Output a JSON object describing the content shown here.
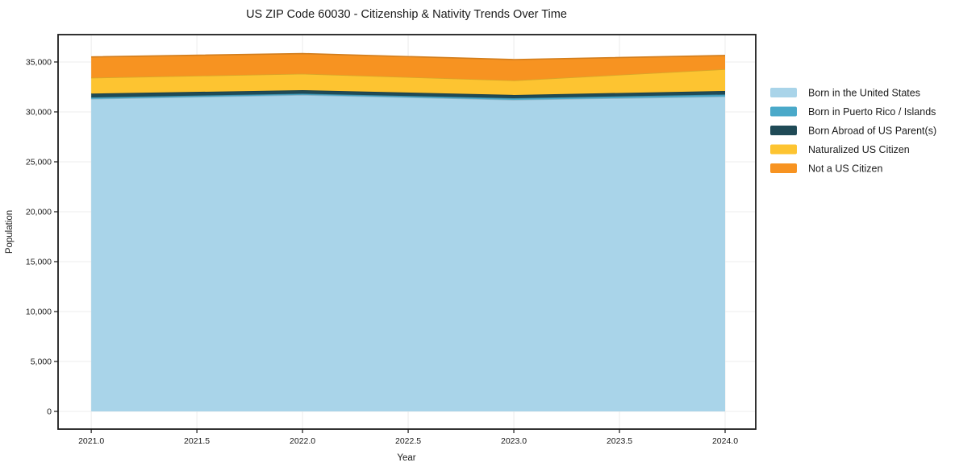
{
  "chart_data": {
    "type": "area",
    "stacked": true,
    "title": "US ZIP Code 60030 - Citizenship & Nativity Trends Over Time",
    "xlabel": "Year",
    "ylabel": "Population",
    "x": [
      2021,
      2022,
      2023,
      2024
    ],
    "series": [
      {
        "name": "Born in the United States",
        "color": "#a9d4e9",
        "values": [
          31300,
          31700,
          31210,
          31540
        ]
      },
      {
        "name": "Born in Puerto Rico / Islands",
        "color": "#4aa9c9",
        "values": [
          150,
          120,
          160,
          200
        ]
      },
      {
        "name": "Born Abroad of US Parent(s)",
        "color": "#1f4a56",
        "values": [
          380,
          360,
          325,
          360
        ]
      },
      {
        "name": "Naturalized US Citizen",
        "color": "#fdc431",
        "values": [
          1590,
          1640,
          1455,
          2180
        ]
      },
      {
        "name": "Not a US Citizen",
        "color": "#f79321",
        "values": [
          2090,
          2020,
          2090,
          1370
        ]
      }
    ],
    "stacked_totals": [
      35510,
      35840,
      35240,
      35650
    ],
    "x_ticks": [
      "2021.0",
      "2021.5",
      "2022.0",
      "2022.5",
      "2023.0",
      "2023.5",
      "2024.0"
    ],
    "x_tick_values": [
      2021,
      2021.5,
      2022,
      2022.5,
      2023,
      2023.5,
      2024
    ],
    "y_ticks": [
      "0",
      "5,000",
      "10,000",
      "15,000",
      "20,000",
      "25,000",
      "30,000",
      "35,000"
    ],
    "y_tick_values": [
      0,
      5000,
      10000,
      15000,
      20000,
      25000,
      30000,
      35000
    ],
    "xlim": [
      2020.843,
      2024.145
    ],
    "ylim": [
      -1775,
      37740
    ],
    "grid": true,
    "legend_position": "right-outside",
    "colors": {
      "background": "#ffffff",
      "gridline": "#ececec",
      "spine": "#1c1c1c",
      "text": "#1a1a1a"
    }
  }
}
